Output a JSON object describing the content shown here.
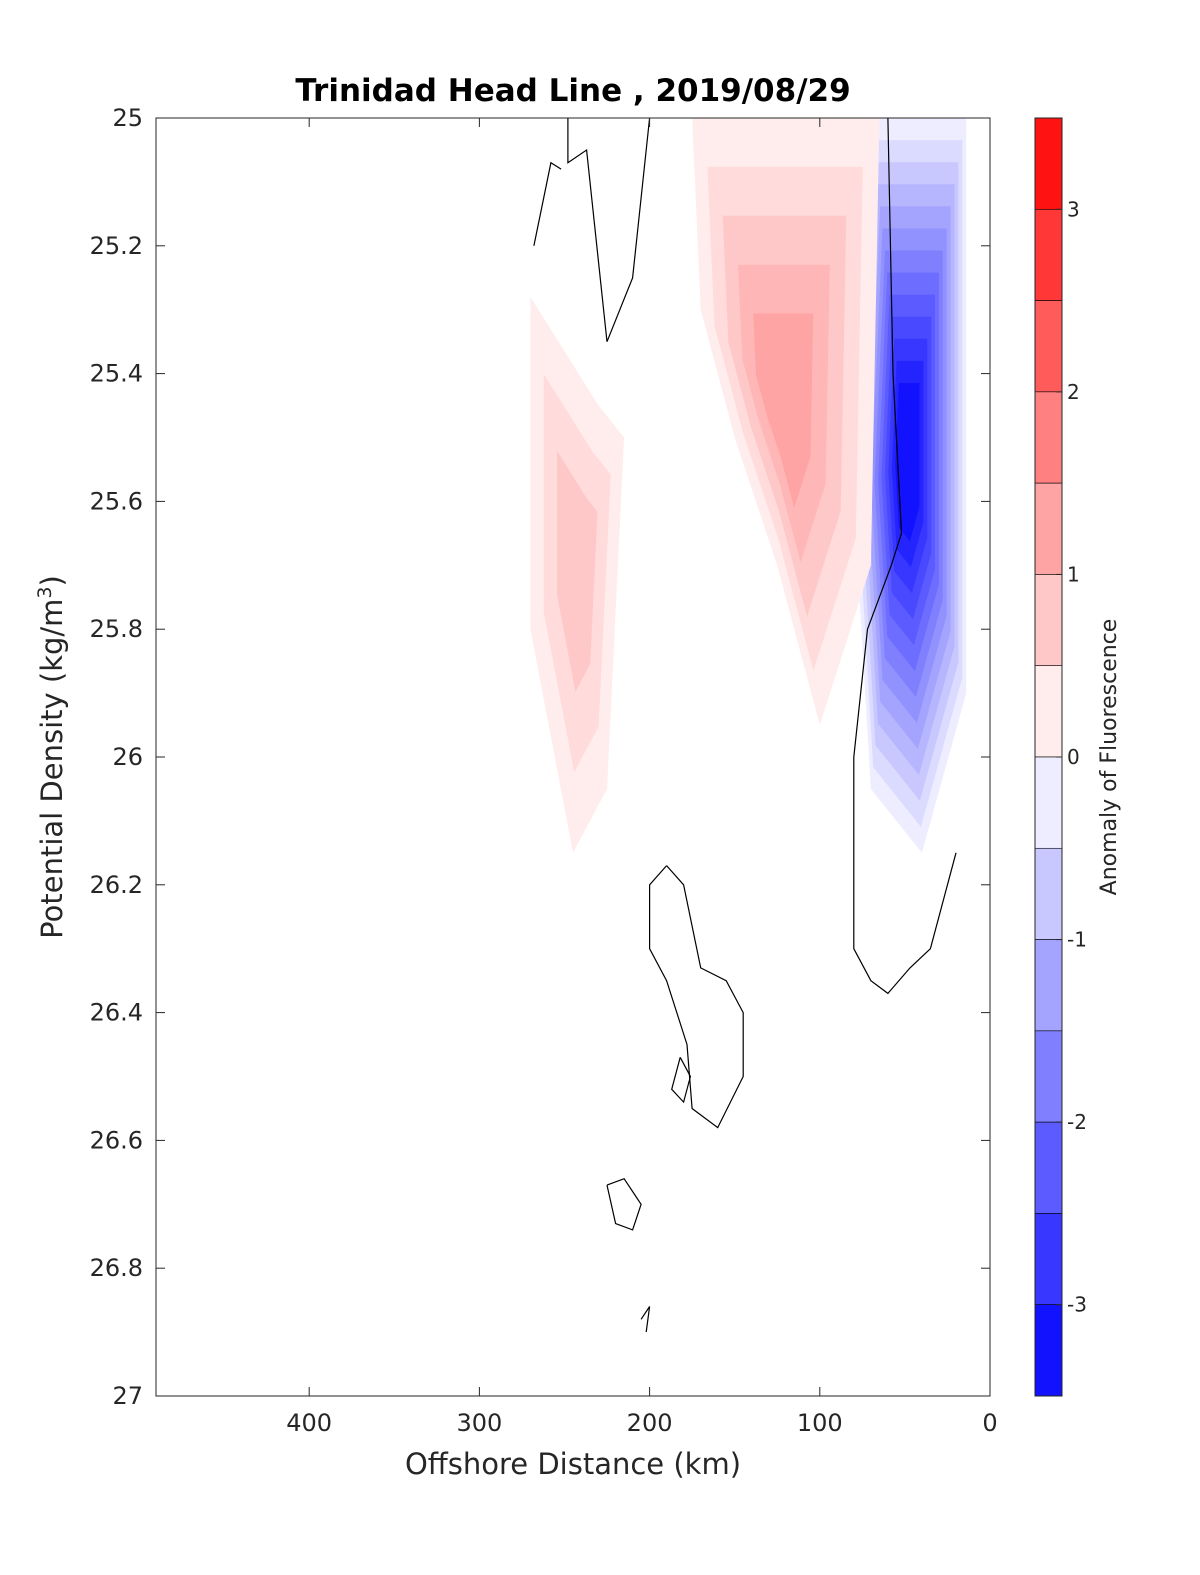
{
  "chart_data": {
    "type": "contour",
    "title": "Trinidad Head Line , 2019/08/29",
    "xlabel": "Offshore Distance (km)",
    "ylabel": "Potential Density (kg/m",
    "ylabel_sup": "3",
    "ylabel_close": ")",
    "xlim": [
      490,
      0
    ],
    "ylim": [
      25,
      27
    ],
    "x_reversed": true,
    "y_reversed": true,
    "xticks": [
      400,
      300,
      200,
      100,
      0
    ],
    "yticks": [
      "25",
      "25.2",
      "25.4",
      "25.6",
      "25.8",
      "26",
      "26.2",
      "26.4",
      "26.6",
      "26.8",
      "27"
    ],
    "colorbar": {
      "label": "Anomaly of Fluorescence",
      "range": [
        -3.5,
        3.5
      ],
      "levels_step": 0.25,
      "ticks": [
        3,
        2,
        1,
        0,
        -1,
        -2,
        -3
      ],
      "colors": {
        "positive": "#ff0000",
        "negative": "#0000ff",
        "zero": "#ffffff"
      }
    },
    "regions": [
      {
        "name": "inshore-negative-anomaly",
        "min_value": -3.25,
        "polygon": [
          [
            55,
            25.0
          ],
          [
            14,
            25.0
          ],
          [
            14,
            25.9
          ],
          [
            40,
            26.15
          ],
          [
            70,
            26.05
          ],
          [
            80,
            25.6
          ],
          [
            70,
            25.0
          ]
        ]
      },
      {
        "name": "central-positive-anomaly",
        "max_value": 1.25,
        "polygon": [
          [
            175,
            25.0
          ],
          [
            65,
            25.0
          ],
          [
            70,
            25.7
          ],
          [
            100,
            25.95
          ],
          [
            125,
            25.7
          ],
          [
            150,
            25.5
          ],
          [
            170,
            25.3
          ]
        ]
      },
      {
        "name": "offshore-positive-anomaly",
        "max_value": 0.75,
        "polygon": [
          [
            270,
            25.28
          ],
          [
            230,
            25.45
          ],
          [
            215,
            25.5
          ],
          [
            225,
            26.05
          ],
          [
            245,
            26.15
          ],
          [
            270,
            25.8
          ]
        ]
      }
    ],
    "zero_contours": [
      [
        [
          248,
          25.0
        ],
        [
          248,
          25.07
        ],
        [
          237,
          25.05
        ],
        [
          225,
          25.35
        ],
        [
          210,
          25.25
        ],
        [
          200,
          25.0
        ]
      ],
      [
        [
          268,
          25.2
        ],
        [
          258,
          25.07
        ],
        [
          252,
          25.08
        ]
      ],
      [
        [
          60,
          25.0
        ],
        [
          57,
          25.4
        ],
        [
          52,
          25.65
        ],
        [
          58,
          25.7
        ],
        [
          72,
          25.8
        ],
        [
          80,
          26.0
        ],
        [
          80,
          26.3
        ],
        [
          70,
          26.35
        ],
        [
          60,
          26.37
        ],
        [
          47,
          26.33
        ],
        [
          35,
          26.3
        ],
        [
          20,
          26.15
        ]
      ],
      [
        [
          190,
          26.17
        ],
        [
          200,
          26.2
        ],
        [
          200,
          26.3
        ],
        [
          190,
          26.35
        ],
        [
          178,
          26.45
        ],
        [
          175,
          26.55
        ],
        [
          160,
          26.58
        ],
        [
          145,
          26.5
        ],
        [
          145,
          26.4
        ],
        [
          155,
          26.35
        ],
        [
          170,
          26.33
        ],
        [
          180,
          26.2
        ],
        [
          190,
          26.17
        ]
      ],
      [
        [
          182,
          26.47
        ],
        [
          187,
          26.52
        ],
        [
          180,
          26.54
        ],
        [
          176,
          26.5
        ],
        [
          182,
          26.47
        ]
      ],
      [
        [
          225,
          26.67
        ],
        [
          215,
          26.66
        ],
        [
          205,
          26.7
        ],
        [
          210,
          26.74
        ],
        [
          220,
          26.73
        ],
        [
          225,
          26.67
        ]
      ],
      [
        [
          205,
          26.88
        ],
        [
          200,
          26.86
        ],
        [
          202,
          26.9
        ]
      ]
    ]
  }
}
